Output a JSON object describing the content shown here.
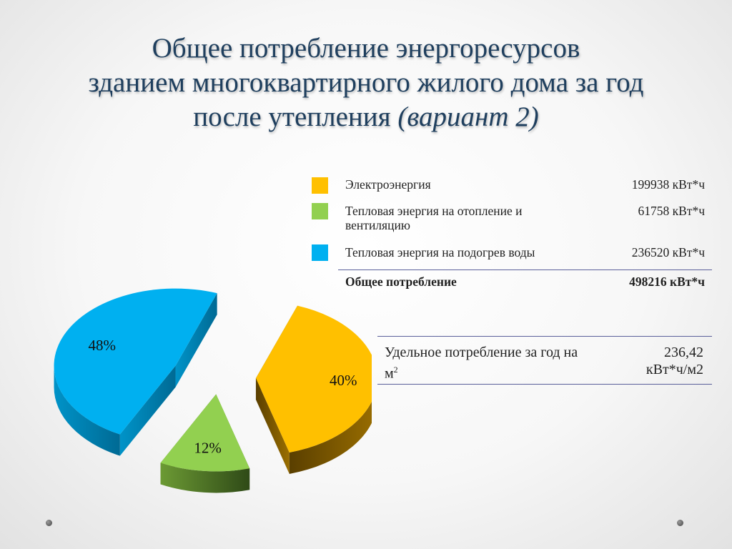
{
  "title": {
    "line1": "Общее потребление энергоресурсов",
    "line2": "зданием многоквартирного жилого дома за год",
    "line3_main": "после утепления ",
    "line3_variant": "(вариант 2)"
  },
  "legend": [
    {
      "label": "Электроэнергия",
      "value": "199938 кВт*ч",
      "color": "#FFC000"
    },
    {
      "label": "Тепловая энергия на отопление и вентиляцию",
      "value": "61758 кВт*ч",
      "color": "#92D050"
    },
    {
      "label": "Тепловая энергия на подогрев воды",
      "value": "236520 кВт*ч",
      "color": "#00B0F0"
    }
  ],
  "total": {
    "label": "Общее потребление",
    "value": "498216 кВт*ч"
  },
  "specific": {
    "label": "Удельное потребление за год на м",
    "label_sup": "2",
    "value_line1": "236,42",
    "value_line2": "кВт*ч/м2"
  },
  "chart_data": {
    "type": "pie",
    "style": "3d-exploded",
    "slices": [
      {
        "name": "Электроэнергия",
        "value": 40,
        "label": "40%",
        "color": "#FFC000"
      },
      {
        "name": "Тепловая энергия на отопление и вентиляцию",
        "value": 12,
        "label": "12%",
        "color": "#92D050"
      },
      {
        "name": "Тепловая энергия на подогрев воды",
        "value": 48,
        "label": "48%",
        "color": "#00B0F0"
      }
    ]
  }
}
